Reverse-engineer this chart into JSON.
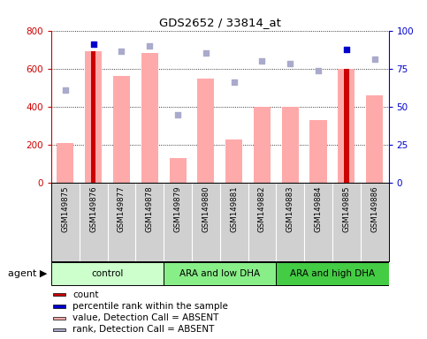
{
  "title": "GDS2652 / 33814_at",
  "samples": [
    "GSM149875",
    "GSM149876",
    "GSM149877",
    "GSM149878",
    "GSM149879",
    "GSM149880",
    "GSM149881",
    "GSM149882",
    "GSM149883",
    "GSM149884",
    "GSM149885",
    "GSM149886"
  ],
  "bar_values_pink": [
    210,
    690,
    560,
    680,
    130,
    550,
    230,
    400,
    400,
    330,
    600,
    460
  ],
  "bar_values_red": [
    0,
    690,
    0,
    0,
    0,
    0,
    0,
    0,
    0,
    0,
    600,
    0
  ],
  "scatter_blue_dark": [
    null,
    730,
    null,
    null,
    null,
    null,
    null,
    null,
    null,
    null,
    700,
    null
  ],
  "scatter_blue_light_value": [
    490,
    null,
    690,
    720,
    360,
    680,
    530,
    null,
    null,
    590,
    null,
    650
  ],
  "scatter_blue_light_rank": [
    null,
    null,
    null,
    null,
    null,
    null,
    null,
    640,
    625,
    null,
    null,
    null
  ],
  "ylim_left": [
    0,
    800
  ],
  "ylim_right": [
    0,
    100
  ],
  "yticks_left": [
    0,
    200,
    400,
    600,
    800
  ],
  "yticks_right": [
    0,
    25,
    50,
    75,
    100
  ],
  "groups": [
    {
      "label": "control",
      "start": 0,
      "end": 3,
      "color": "#ccffcc"
    },
    {
      "label": "ARA and low DHA",
      "start": 4,
      "end": 7,
      "color": "#88ee88"
    },
    {
      "label": "ARA and high DHA",
      "start": 8,
      "end": 11,
      "color": "#44cc44"
    }
  ],
  "legend_items": [
    {
      "label": "count",
      "color": "#cc0000"
    },
    {
      "label": "percentile rank within the sample",
      "color": "#0000cc"
    },
    {
      "label": "value, Detection Call = ABSENT",
      "color": "#ffaaaa"
    },
    {
      "label": "rank, Detection Call = ABSENT",
      "color": "#aaaacc"
    }
  ],
  "left_axis_color": "#cc0000",
  "right_axis_color": "#0000cc",
  "pink_bar_color": "#ffaaaa",
  "red_bar_color": "#cc0000",
  "dark_blue_color": "#0000cc",
  "light_blue_scatter_color": "#aaaacc",
  "ticklabel_bg_color": "#d0d0d0",
  "plot_bg_color": "#ffffff",
  "agent_label": "agent"
}
